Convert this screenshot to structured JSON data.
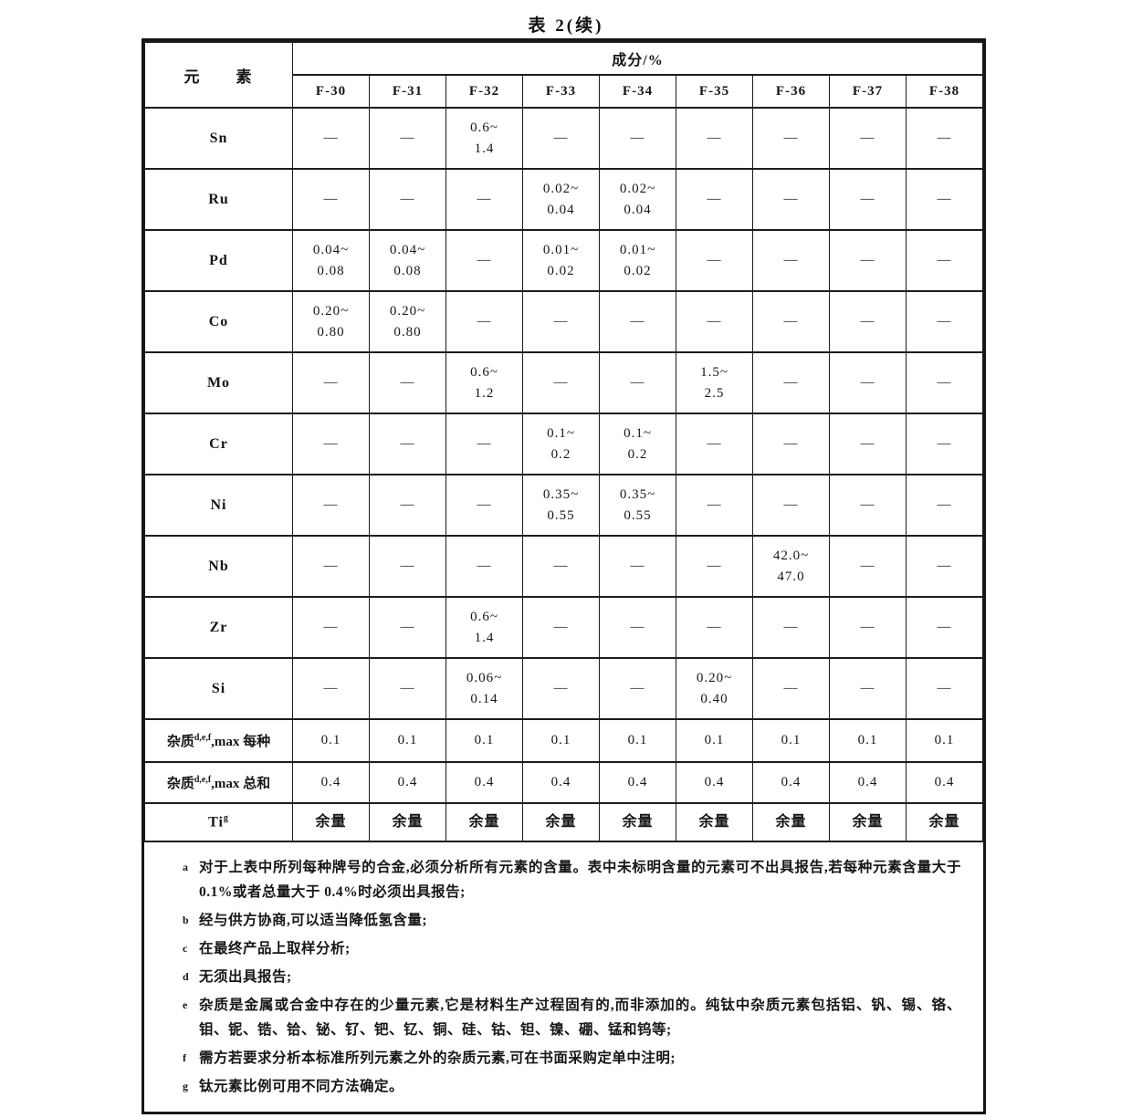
{
  "colors": {
    "ink": "#161616",
    "paper": "#ffffff"
  },
  "title": "表 2(续)",
  "table": {
    "element_header": "元　　素",
    "composition_header": "成分/%",
    "grades": [
      "F-30",
      "F-31",
      "F-32",
      "F-33",
      "F-34",
      "F-35",
      "F-36",
      "F-37",
      "F-38"
    ],
    "rows": [
      {
        "label": "Sn",
        "values": [
          "—",
          "—",
          "0.6~\n1.4",
          "—",
          "—",
          "—",
          "—",
          "—",
          "—"
        ]
      },
      {
        "label": "Ru",
        "values": [
          "—",
          "—",
          "—",
          "0.02~\n0.04",
          "0.02~\n0.04",
          "—",
          "—",
          "—",
          "—"
        ]
      },
      {
        "label": "Pd",
        "values": [
          "0.04~\n0.08",
          "0.04~\n0.08",
          "—",
          "0.01~\n0.02",
          "0.01~\n0.02",
          "—",
          "—",
          "—",
          "—"
        ]
      },
      {
        "label": "Co",
        "values": [
          "0.20~\n0.80",
          "0.20~\n0.80",
          "—",
          "—",
          "—",
          "—",
          "—",
          "—",
          "—"
        ]
      },
      {
        "label": "Mo",
        "values": [
          "—",
          "—",
          "0.6~\n1.2",
          "—",
          "—",
          "1.5~\n2.5",
          "—",
          "—",
          "—"
        ]
      },
      {
        "label": "Cr",
        "values": [
          "—",
          "—",
          "—",
          "0.1~\n0.2",
          "0.1~\n0.2",
          "—",
          "—",
          "—",
          "—"
        ]
      },
      {
        "label": "Ni",
        "values": [
          "—",
          "—",
          "—",
          "0.35~\n0.55",
          "0.35~\n0.55",
          "—",
          "—",
          "—",
          "—"
        ]
      },
      {
        "label": "Nb",
        "values": [
          "—",
          "—",
          "—",
          "—",
          "—",
          "—",
          "42.0~\n47.0",
          "—",
          "—"
        ]
      },
      {
        "label": "Zr",
        "values": [
          "—",
          "—",
          "0.6~\n1.4",
          "—",
          "—",
          "—",
          "—",
          "—",
          "—"
        ]
      },
      {
        "label": "Si",
        "values": [
          "—",
          "—",
          "0.06~\n0.14",
          "—",
          "—",
          "0.20~\n0.40",
          "—",
          "—",
          "—"
        ]
      },
      {
        "label_base": "杂质",
        "label_sup": "d,e,f",
        "label_rest": ",max 每种",
        "values": [
          "0.1",
          "0.1",
          "0.1",
          "0.1",
          "0.1",
          "0.1",
          "0.1",
          "0.1",
          "0.1"
        ]
      },
      {
        "label_base": "杂质",
        "label_sup": "d,e,f",
        "label_rest": ",max 总和",
        "values": [
          "0.4",
          "0.4",
          "0.4",
          "0.4",
          "0.4",
          "0.4",
          "0.4",
          "0.4",
          "0.4"
        ]
      },
      {
        "label_base": "Ti",
        "label_sup": "g",
        "label_rest": "",
        "values": [
          "余量",
          "余量",
          "余量",
          "余量",
          "余量",
          "余量",
          "余量",
          "余量",
          "余量"
        ]
      }
    ],
    "footnotes": [
      {
        "letter": "a",
        "text": "对于上表中所列每种牌号的合金,必须分析所有元素的含量。表中未标明含量的元素可不出具报告,若每种元素含量大于 0.1%或者总量大于 0.4%时必须出具报告;"
      },
      {
        "letter": "b",
        "text": "经与供方协商,可以适当降低氢含量;"
      },
      {
        "letter": "c",
        "text": "在最终产品上取样分析;"
      },
      {
        "letter": "d",
        "text": "无须出具报告;"
      },
      {
        "letter": "e",
        "text": "杂质是金属或合金中存在的少量元素,它是材料生产过程固有的,而非添加的。纯钛中杂质元素包括铝、钒、锡、铬、钼、铌、锆、铪、铋、钌、钯、钇、铜、硅、钴、钽、镍、硼、锰和钨等;"
      },
      {
        "letter": "f",
        "text": "需方若要求分析本标准所列元素之外的杂质元素,可在书面采购定单中注明;"
      },
      {
        "letter": "g",
        "text": "钛元素比例可用不同方法确定。"
      }
    ]
  }
}
